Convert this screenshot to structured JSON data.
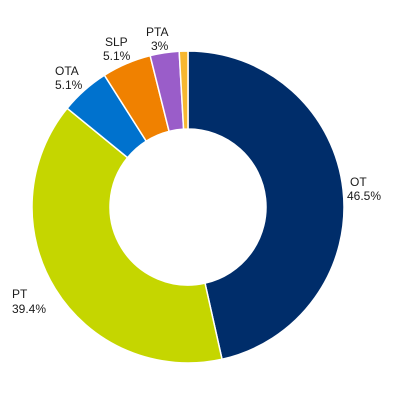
{
  "chart_data": {
    "type": "pie",
    "donut": true,
    "title": "",
    "slices": [
      {
        "label": "OT",
        "value": 46.5,
        "value_label": "46.5%",
        "color": "#002D6A"
      },
      {
        "label": "PT",
        "value": 39.4,
        "value_label": "39.4%",
        "color": "#C5D600"
      },
      {
        "label": "OTA",
        "value": 5.1,
        "value_label": "5.1%",
        "color": "#0072CE"
      },
      {
        "label": "SLP",
        "value": 5.1,
        "value_label": "5.1%",
        "color": "#F08100"
      },
      {
        "label": "PTA",
        "value": 3.0,
        "value_label": "3%",
        "color": "#9A5DC9"
      },
      {
        "label": "",
        "value": 0.9,
        "value_label": "",
        "color": "#F7B731"
      }
    ],
    "legend": "none"
  }
}
